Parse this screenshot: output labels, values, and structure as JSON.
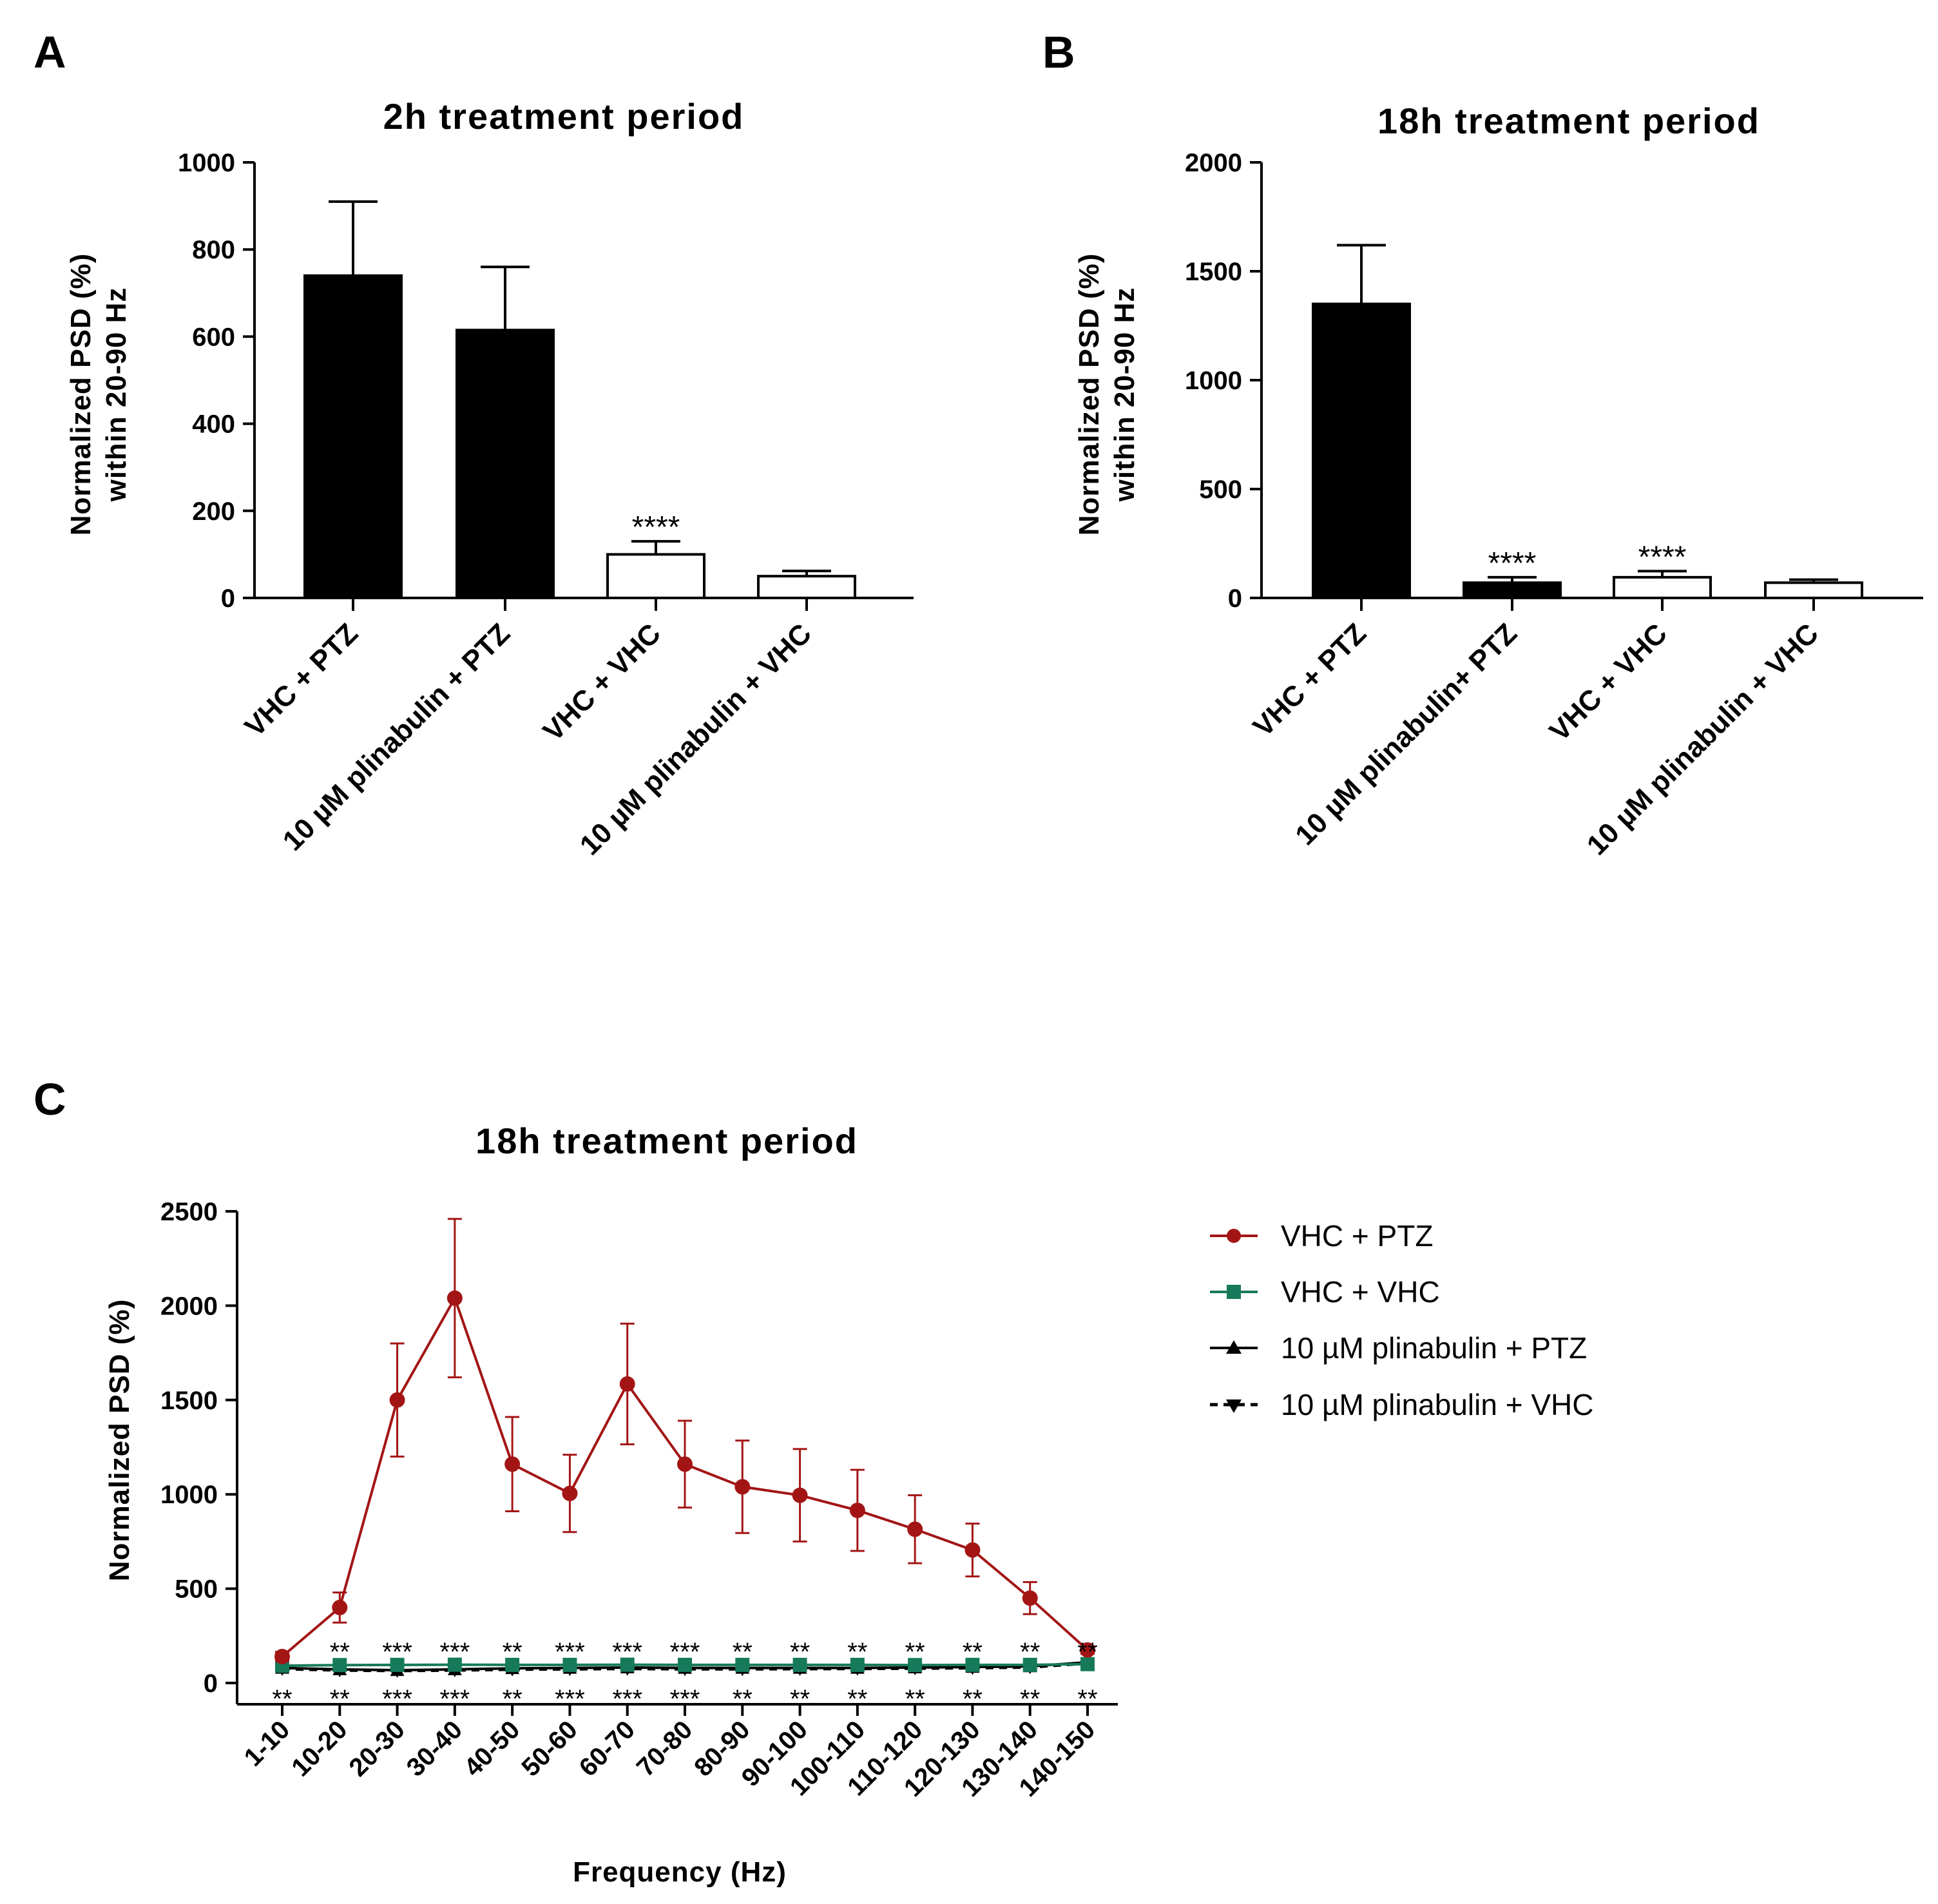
{
  "panels": {
    "a": "A",
    "b": "B",
    "c": "C"
  },
  "colors": {
    "ptz": "#a31515",
    "vhc": "#167a5a",
    "plin_ptz": "#000000",
    "plin_vhc": "#000000"
  },
  "chart_data": [
    {
      "type": "bar",
      "title": "2h treatment period",
      "ylabel": [
        "Normalized PSD (%)",
        "within 20-90 Hz"
      ],
      "ylim": [
        0,
        1000
      ],
      "yticks": [
        0,
        200,
        400,
        600,
        800,
        1000
      ],
      "categories": [
        "VHC + PTZ",
        "10 µM plinabulin + PTZ",
        "VHC + VHC",
        "10 µM plinabulin + VHC"
      ],
      "values": [
        740,
        615,
        100,
        50
      ],
      "errors": [
        170,
        145,
        30,
        12
      ],
      "fills": [
        "black",
        "black",
        "white",
        "white"
      ],
      "annotations": [
        "",
        "",
        "****",
        ""
      ]
    },
    {
      "type": "bar",
      "title": "18h treatment period",
      "ylabel": [
        "Normalized PSD (%)",
        "within 20-90 Hz"
      ],
      "ylim": [
        0,
        2000
      ],
      "yticks": [
        0,
        500,
        1000,
        1500,
        2000
      ],
      "categories": [
        "VHC + PTZ",
        "10 µM plinabulin+ PTZ",
        "VHC + VHC",
        "10 µM plinabulin + VHC"
      ],
      "values": [
        1350,
        70,
        95,
        70
      ],
      "errors": [
        270,
        25,
        28,
        14
      ],
      "fills": [
        "black",
        "black",
        "white",
        "white"
      ],
      "annotations": [
        "",
        "****",
        "****",
        ""
      ]
    },
    {
      "type": "line",
      "title": "18h treatment period",
      "ylabel": "Normalized PSD (%)",
      "xlabel": "Frequency (Hz)",
      "ylim": [
        0,
        2500
      ],
      "yticks": [
        0,
        500,
        1000,
        1500,
        2000,
        2500
      ],
      "categories": [
        "1-10",
        "10-20",
        "20-30",
        "30-40",
        "40-50",
        "50-60",
        "60-70",
        "70-80",
        "80-90",
        "90-100",
        "100-110",
        "110-120",
        "120-130",
        "130-140",
        "140-150"
      ],
      "series": [
        {
          "name": "VHC + PTZ",
          "color": "#a31515",
          "marker": "circle",
          "dash": false,
          "values": [
            140,
            400,
            1500,
            2040,
            1160,
            1005,
            1585,
            1160,
            1040,
            995,
            915,
            815,
            705,
            450,
            175
          ],
          "errors": [
            25,
            80,
            300,
            420,
            250,
            205,
            320,
            230,
            245,
            245,
            215,
            180,
            140,
            85,
            20
          ]
        },
        {
          "name": "VHC + VHC",
          "color": "#167a5a",
          "marker": "square",
          "dash": false,
          "values": [
            92,
            95,
            96,
            97,
            96,
            96,
            97,
            96,
            96,
            96,
            96,
            95,
            96,
            96,
            100
          ],
          "errors": [
            4,
            4,
            4,
            4,
            4,
            4,
            4,
            4,
            4,
            4,
            4,
            4,
            4,
            4,
            4
          ]
        },
        {
          "name": "10  µM plinabulin + PTZ",
          "color": "#000000",
          "marker": "triangle-up",
          "dash": false,
          "values": [
            80,
            72,
            68,
            72,
            78,
            80,
            82,
            80,
            80,
            80,
            80,
            82,
            85,
            88,
            110
          ],
          "errors": [
            5,
            5,
            5,
            5,
            5,
            5,
            5,
            5,
            5,
            5,
            5,
            5,
            5,
            5,
            5
          ]
        },
        {
          "name": "10  µM plinabulin + VHC",
          "color": "#000000",
          "marker": "triangle-down",
          "dash": true,
          "values": [
            75,
            68,
            65,
            68,
            72,
            74,
            76,
            74,
            74,
            75,
            76,
            78,
            80,
            84,
            105
          ],
          "errors": [
            5,
            5,
            5,
            5,
            5,
            5,
            5,
            5,
            5,
            5,
            5,
            5,
            5,
            5,
            5
          ]
        }
      ],
      "annotations_upper": [
        "",
        "**",
        "***",
        "***",
        "**",
        "***",
        "***",
        "***",
        "**",
        "**",
        "**",
        "**",
        "**",
        "**",
        "**"
      ],
      "annotations_lower": [
        "**",
        "**",
        "***",
        "***",
        "**",
        "***",
        "***",
        "***",
        "**",
        "**",
        "**",
        "**",
        "**",
        "**",
        "**"
      ]
    }
  ]
}
